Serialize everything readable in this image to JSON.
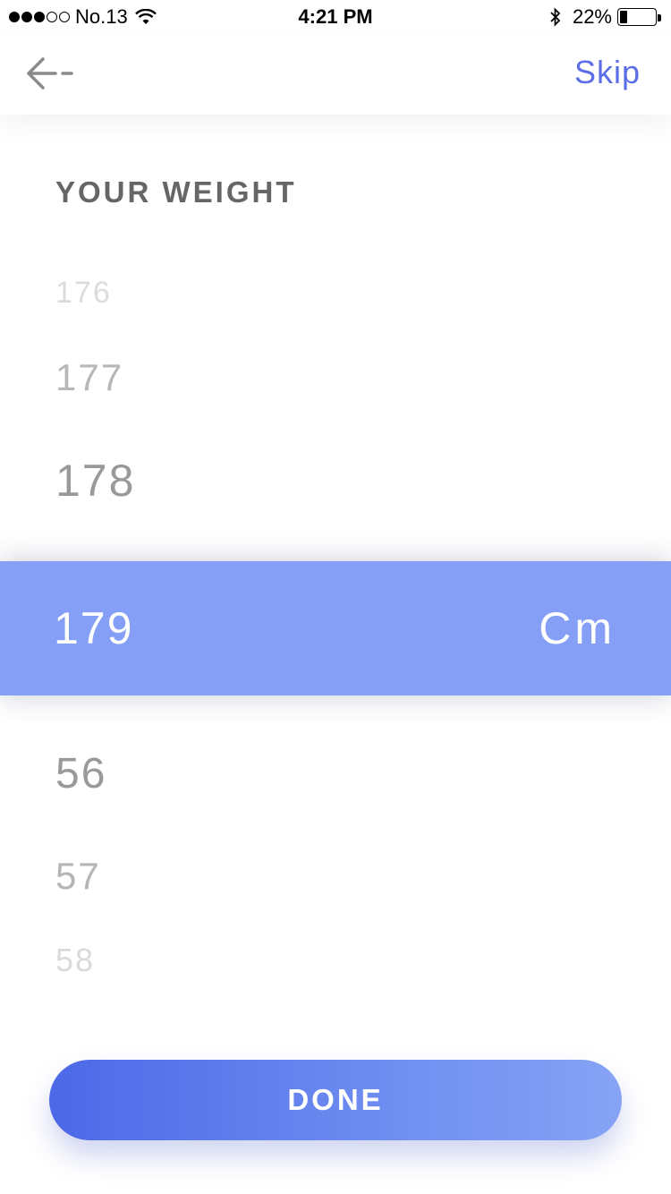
{
  "status_bar": {
    "carrier": "No.13",
    "time": "4:21 PM",
    "battery_text": "22%",
    "battery_level": 0.22,
    "signal_filled": 3,
    "signal_total": 5
  },
  "header": {
    "back_icon": "arrow-left-icon",
    "skip_label": "Skip"
  },
  "title": "YOUR WEIGHT",
  "picker": {
    "above": [
      "176",
      "177",
      "178"
    ],
    "selected_value": "179",
    "selected_unit": "Cm",
    "below": [
      "56",
      "57",
      "58"
    ]
  },
  "done_label": "DONE",
  "colors": {
    "accent": "#5b6ee6",
    "selected_row": "#849ff5",
    "button_start": "#4d68e8",
    "button_end": "#86a3f5"
  }
}
